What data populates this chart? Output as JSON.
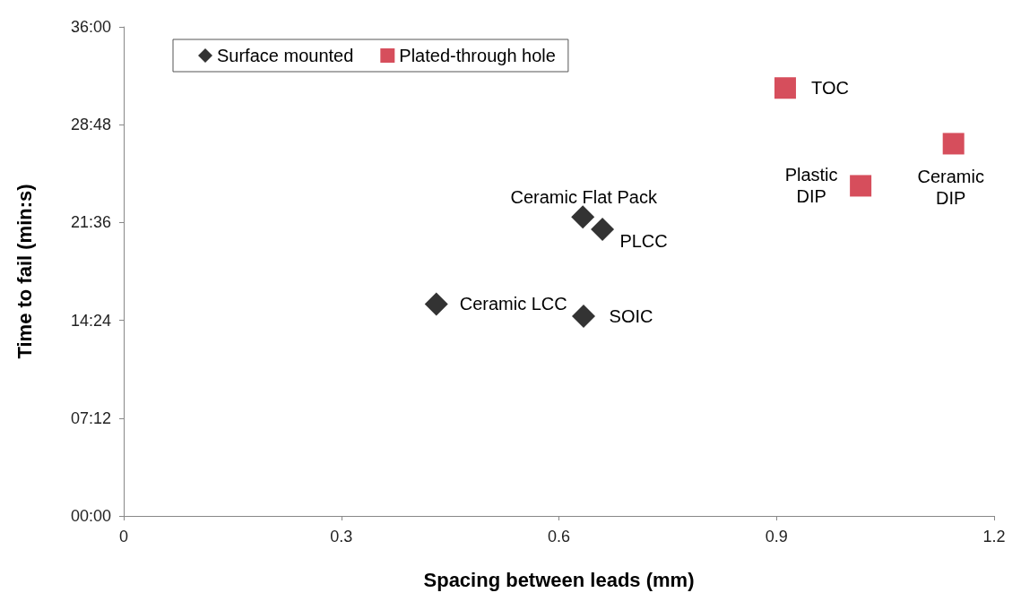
{
  "chart_data": {
    "type": "scatter",
    "xlabel": "Spacing between leads (mm)",
    "ylabel": "Time to fail (min:s)",
    "xlim": [
      0,
      1.2
    ],
    "xticks": [
      0,
      0.3,
      0.6,
      0.9,
      1.2
    ],
    "ylim": [
      0,
      36
    ],
    "yticks": [
      {
        "value": 0,
        "label": "00:00"
      },
      {
        "value": 7.2,
        "label": "07:12"
      },
      {
        "value": 14.4,
        "label": "14:24"
      },
      {
        "value": 21.6,
        "label": "21:36"
      },
      {
        "value": 28.8,
        "label": "28:48"
      },
      {
        "value": 36,
        "label": "36:00"
      }
    ],
    "grid": false,
    "legend": "top left",
    "series": [
      {
        "name": "Surface mounted",
        "color": "#000000",
        "marker": "diamond",
        "x": [
          0.431,
          0.634,
          0.633,
          0.66
        ],
        "values": [
          15.6,
          14.7,
          22.0,
          21.1
        ]
      },
      {
        "name": "Plated-through hole",
        "color": "#cc2233",
        "marker": "square",
        "x": [
          0.912,
          1.016,
          1.144
        ],
        "values": [
          31.5,
          24.3,
          27.4
        ]
      }
    ],
    "annotations": [
      {
        "text": "Ceramic LCC",
        "x": 0.431,
        "y": 15.6
      },
      {
        "text": "SOIC",
        "x": 0.634,
        "y": 14.7
      },
      {
        "text": "Ceramic Flat Pack",
        "x": 0.633,
        "y": 22.0
      },
      {
        "text": "PLCC",
        "x": 0.66,
        "y": 21.1
      },
      {
        "text": "TOC",
        "x": 0.912,
        "y": 31.5
      },
      {
        "text": "Plastic\nDIP",
        "x": 1.016,
        "y": 24.3
      },
      {
        "text": "Ceramic\nDIP",
        "x": 1.144,
        "y": 27.4
      }
    ]
  }
}
